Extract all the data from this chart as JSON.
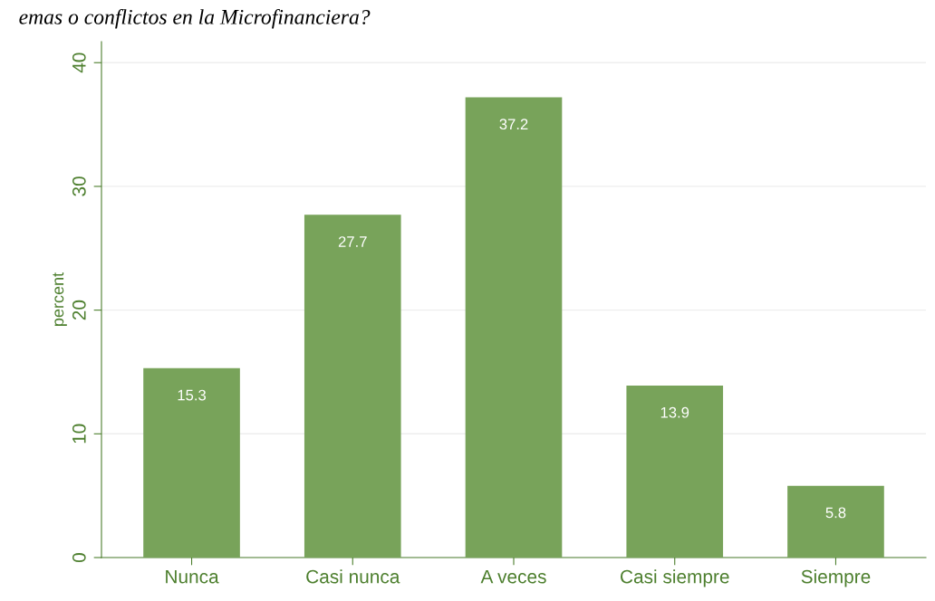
{
  "chart_data": {
    "type": "bar",
    "title": "emas o conflictos en la Microfinanciera?",
    "categories": [
      "Nunca",
      "Casi nunca",
      "A veces",
      "Casi siempre",
      "Siempre"
    ],
    "values": [
      15.3,
      27.7,
      37.2,
      13.9,
      5.8
    ],
    "color": "#78a35a",
    "ylabel": "percent",
    "ylim": [
      0,
      41.7
    ],
    "yticks": [
      0,
      10,
      20,
      30,
      40
    ],
    "grid": "y",
    "data_labels": true
  }
}
